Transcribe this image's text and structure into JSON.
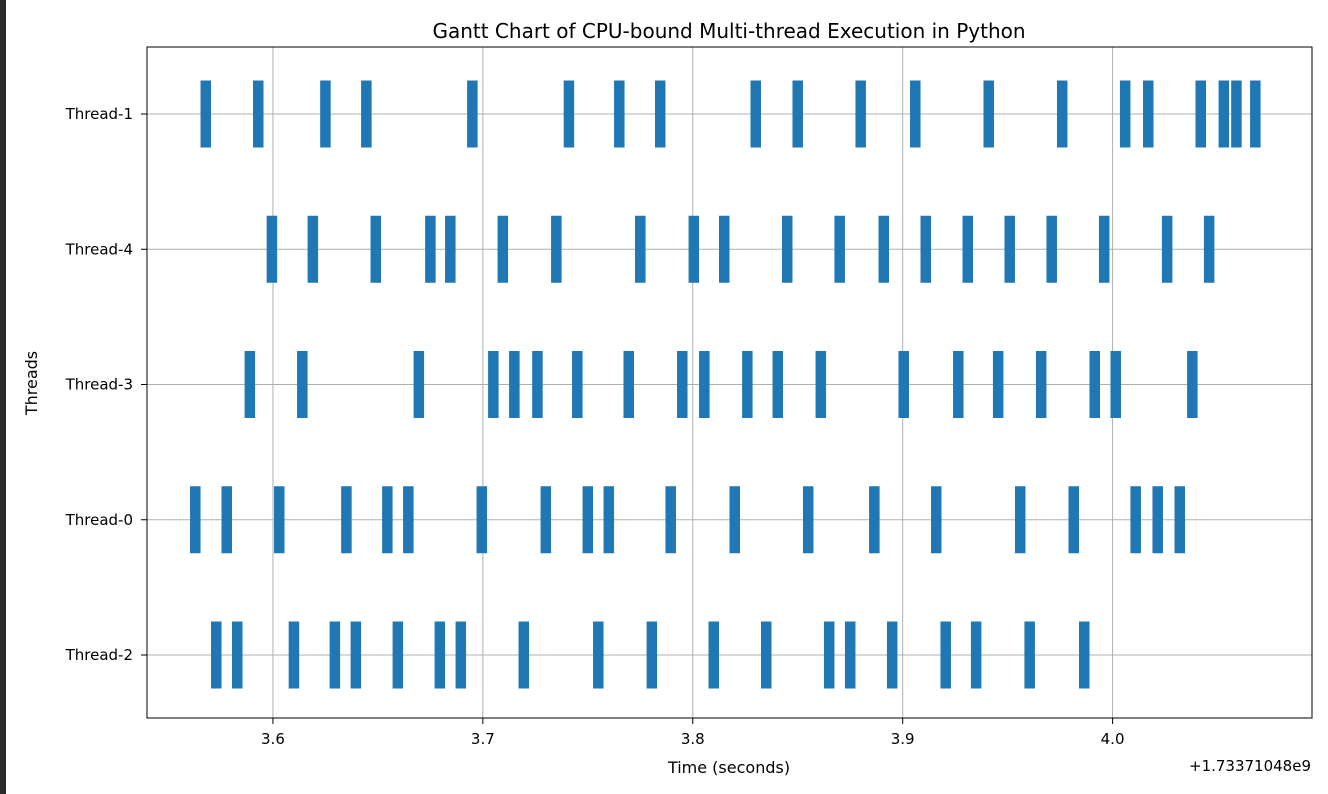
{
  "chart_data": {
    "type": "gantt",
    "title": "Gantt Chart of CPU-bound Multi-thread Execution in Python",
    "xlabel": "Time (seconds)",
    "ylabel": "Threads",
    "offset_label": "+1.73371048e9",
    "xlim": [
      3.54,
      4.095
    ],
    "x_ticks": [
      3.6,
      3.7,
      3.8,
      3.9,
      4.0
    ],
    "x_tick_labels": [
      "3.6",
      "3.7",
      "3.8",
      "3.9",
      "4.0"
    ],
    "grid": true,
    "bar_color": "#1f77b4",
    "grid_color": "#b0b0b0",
    "bar_width_seconds": 0.005,
    "threads": [
      {
        "name": "Thread-1",
        "starts": [
          3.5655,
          3.5905,
          3.6225,
          3.642,
          3.6925,
          3.7385,
          3.7625,
          3.782,
          3.8275,
          3.8475,
          3.8775,
          3.9035,
          3.9385,
          3.9735,
          4.0035,
          4.0145,
          4.0395,
          4.0505,
          4.0565,
          4.0655
        ]
      },
      {
        "name": "Thread-4",
        "starts": [
          3.597,
          3.6165,
          3.6465,
          3.6725,
          3.682,
          3.707,
          3.7325,
          3.7725,
          3.798,
          3.8125,
          3.8425,
          3.8675,
          3.8885,
          3.9085,
          3.9285,
          3.9485,
          3.9685,
          3.9935,
          4.0235,
          4.0435
        ]
      },
      {
        "name": "Thread-3",
        "starts": [
          3.5865,
          3.6115,
          3.667,
          3.7025,
          3.7125,
          3.7235,
          3.7425,
          3.767,
          3.7925,
          3.803,
          3.8235,
          3.838,
          3.8585,
          3.898,
          3.924,
          3.943,
          3.9635,
          3.989,
          3.999,
          4.0355
        ]
      },
      {
        "name": "Thread-0",
        "starts": [
          3.5605,
          3.5755,
          3.6005,
          3.6325,
          3.652,
          3.662,
          3.697,
          3.7275,
          3.7475,
          3.7575,
          3.787,
          3.8175,
          3.8525,
          3.884,
          3.9135,
          3.9535,
          3.979,
          4.0085,
          4.019,
          4.0295
        ]
      },
      {
        "name": "Thread-2",
        "starts": [
          3.5705,
          3.5805,
          3.6075,
          3.627,
          3.637,
          3.657,
          3.677,
          3.687,
          3.717,
          3.7525,
          3.778,
          3.8075,
          3.8325,
          3.8625,
          3.8725,
          3.8925,
          3.918,
          3.9325,
          3.958,
          3.984
        ]
      }
    ]
  }
}
